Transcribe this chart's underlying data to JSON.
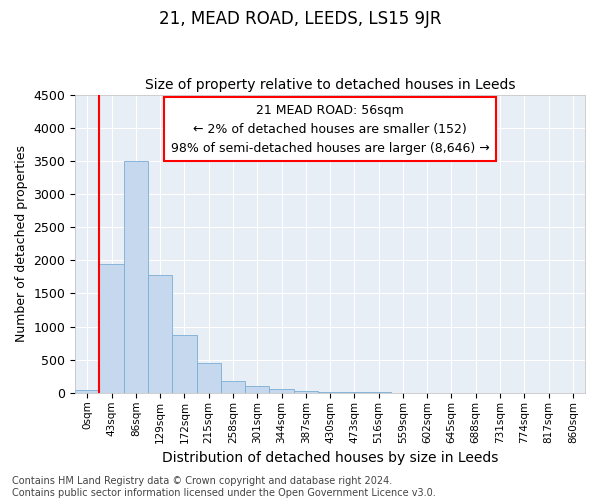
{
  "title": "21, MEAD ROAD, LEEDS, LS15 9JR",
  "subtitle": "Size of property relative to detached houses in Leeds",
  "xlabel": "Distribution of detached houses by size in Leeds",
  "ylabel": "Number of detached properties",
  "bar_color": "#c5d8ee",
  "bar_edge_color": "#7aadd4",
  "background_color": "#e8eef6",
  "grid_color": "#ffffff",
  "tick_labels": [
    "0sqm",
    "43sqm",
    "86sqm",
    "129sqm",
    "172sqm",
    "215sqm",
    "258sqm",
    "301sqm",
    "344sqm",
    "387sqm",
    "430sqm",
    "473sqm",
    "516sqm",
    "559sqm",
    "602sqm",
    "645sqm",
    "688sqm",
    "731sqm",
    "774sqm",
    "817sqm",
    "860sqm"
  ],
  "bar_values": [
    50,
    1950,
    3500,
    1780,
    870,
    450,
    185,
    100,
    55,
    30,
    15,
    10,
    7,
    5,
    4,
    3,
    2,
    2,
    1,
    1,
    1
  ],
  "ylim": [
    0,
    4500
  ],
  "yticks": [
    0,
    500,
    1000,
    1500,
    2000,
    2500,
    3000,
    3500,
    4000,
    4500
  ],
  "red_line_x": 1.0,
  "annotation_text": "21 MEAD ROAD: 56sqm\n← 2% of detached houses are smaller (152)\n98% of semi-detached houses are larger (8,646) →",
  "footer_text": "Contains HM Land Registry data © Crown copyright and database right 2024.\nContains public sector information licensed under the Open Government Licence v3.0.",
  "title_fontsize": 12,
  "subtitle_fontsize": 10,
  "annotation_fontsize": 9,
  "footer_fontsize": 7,
  "ylabel_fontsize": 9,
  "xlabel_fontsize": 10
}
